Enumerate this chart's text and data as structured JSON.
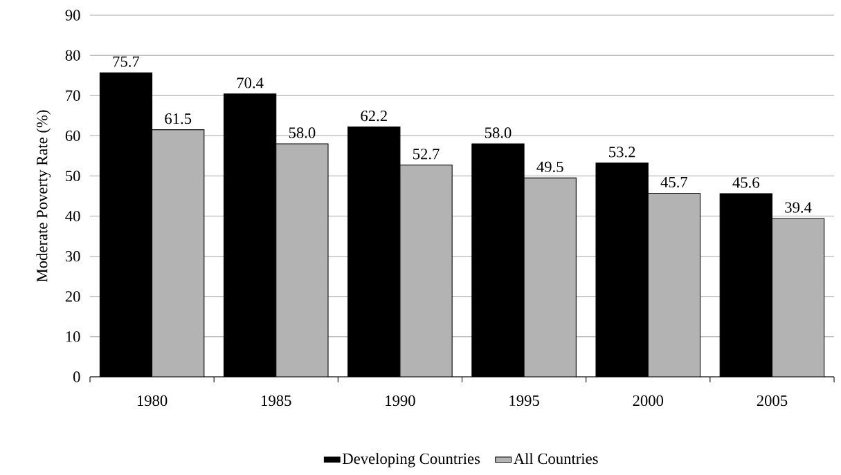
{
  "chart_data": {
    "type": "bar",
    "ylabel": "Moderate Poverty Rate (%)",
    "categories": [
      "1980",
      "1985",
      "1990",
      "1995",
      "2000",
      "2005"
    ],
    "series": [
      {
        "name": "Developing Countries",
        "color": "#000000",
        "values": [
          75.7,
          70.4,
          62.2,
          58.0,
          53.2,
          45.6
        ],
        "value_labels": [
          "75.7",
          "70.4",
          "62.2",
          "58.0",
          "53.2",
          "45.6"
        ]
      },
      {
        "name": "All Countries",
        "color": "#b3b3b3",
        "values": [
          61.5,
          58.0,
          52.7,
          49.5,
          45.7,
          39.4
        ],
        "value_labels": [
          "61.5",
          "58.0",
          "52.7",
          "49.5",
          "45.7",
          "39.4"
        ]
      }
    ],
    "ylim": [
      0,
      90
    ],
    "yticks": [
      0,
      10,
      20,
      30,
      40,
      50,
      60,
      70,
      80,
      90
    ],
    "grid": "y",
    "legend": "bottom"
  }
}
